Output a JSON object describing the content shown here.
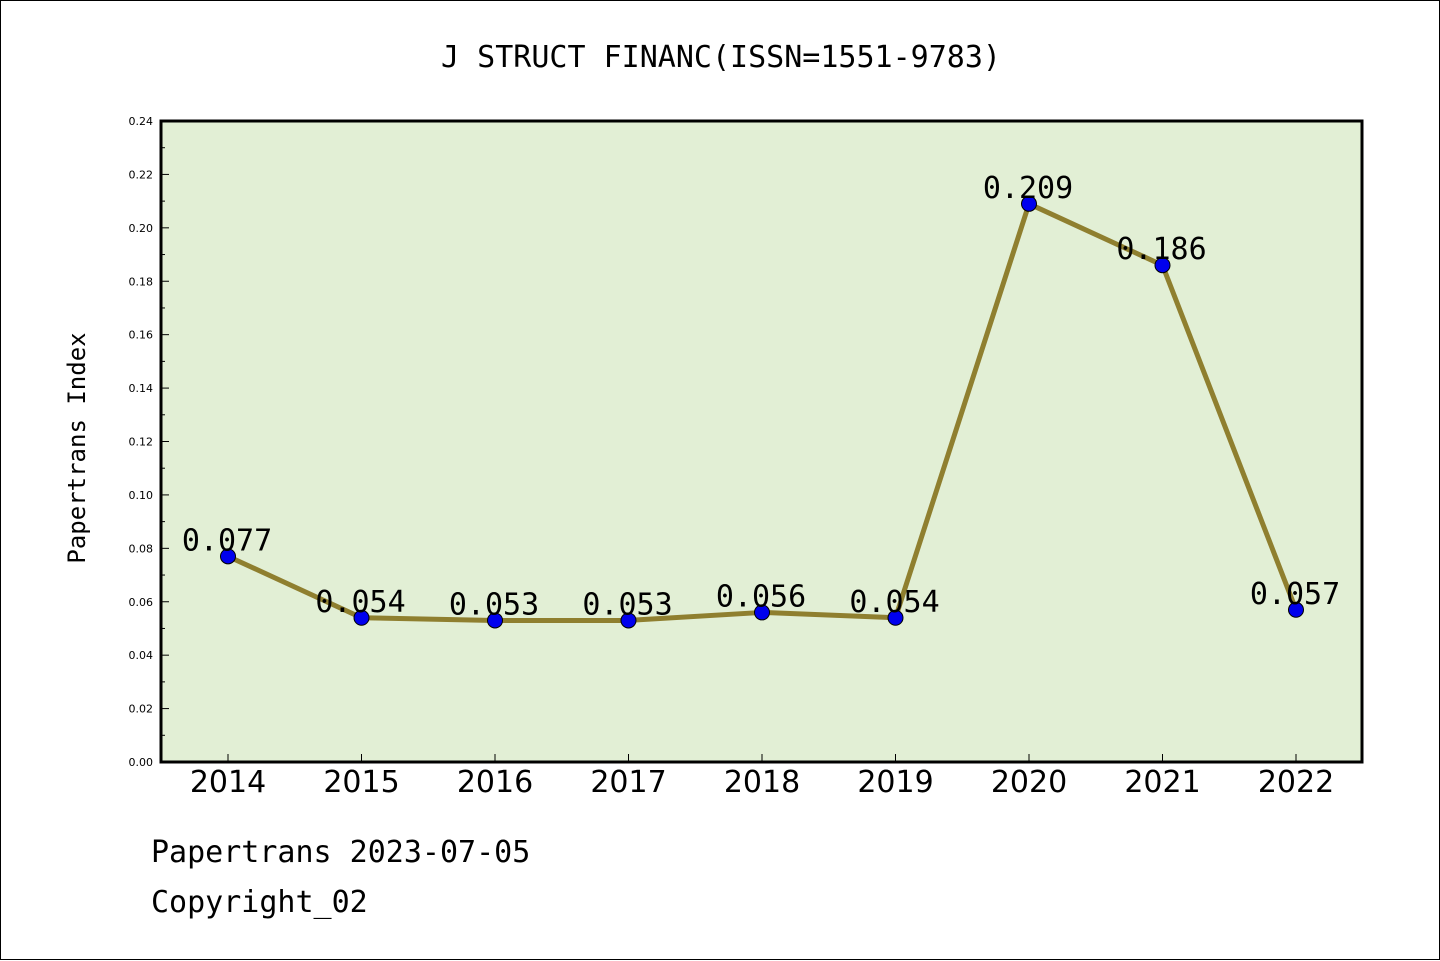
{
  "chart_data": {
    "type": "line",
    "title": "J STRUCT FINANC(ISSN=1551-9783)",
    "xlabel": "",
    "ylabel": "Papertrans Index",
    "categories": [
      "2014",
      "2015",
      "2016",
      "2017",
      "2018",
      "2019",
      "2020",
      "2021",
      "2022"
    ],
    "series": [
      {
        "values": [
          0.077,
          0.054,
          0.053,
          0.053,
          0.056,
          0.054,
          0.209,
          0.186,
          0.057
        ]
      }
    ],
    "data_labels": [
      "0.077",
      "0.054",
      "0.053",
      "0.053",
      "0.056",
      "0.054",
      "0.209",
      "0.186",
      "0.057"
    ],
    "ylim": [
      0,
      0.24
    ],
    "yticks": [
      "0.00",
      "0.02",
      "0.04",
      "0.06",
      "0.08",
      "0.10",
      "0.12",
      "0.14",
      "0.16",
      "0.18",
      "0.20",
      "0.22",
      "0.24"
    ],
    "grid": false,
    "colors": {
      "plot_background": "#e2efd5",
      "line": "#8f7f2f",
      "marker": "#0000ee"
    }
  },
  "footer": {
    "line1": "Papertrans 2023-07-05",
    "line2": "Copyright_02"
  }
}
